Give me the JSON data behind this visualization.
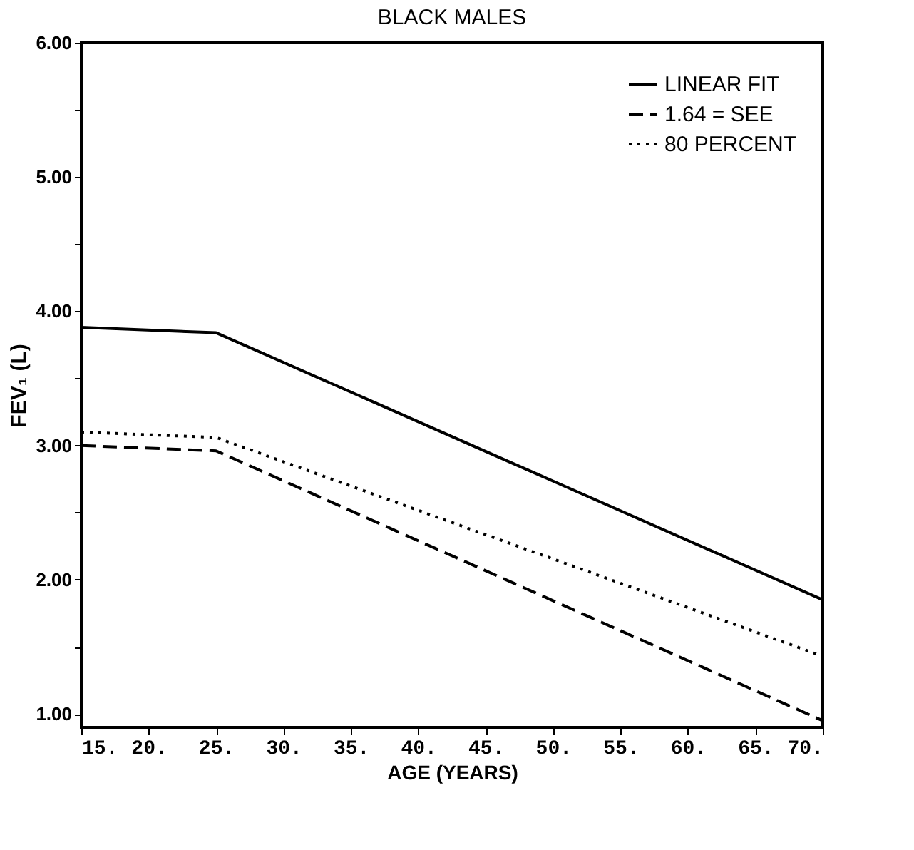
{
  "chart_data": {
    "type": "line",
    "title": "BLACK MALES",
    "xlabel": "AGE (YEARS)",
    "ylabel": "FEV₁ (L)",
    "x": [
      15,
      25,
      70
    ],
    "series": [
      {
        "name": "LINEAR FIT",
        "color": "#000000",
        "line_style": "solid",
        "values": [
          3.88,
          3.84,
          1.85
        ]
      },
      {
        "name": "1.64 = SEE",
        "color": "#000000",
        "line_style": "dashed",
        "values": [
          3.0,
          2.96,
          0.95
        ]
      },
      {
        "name": "80 PERCENT",
        "color": "#000000",
        "line_style": "dotted",
        "values": [
          3.1,
          3.06,
          1.43
        ]
      }
    ],
    "xlim": [
      15,
      70
    ],
    "ylim": [
      0.9,
      6.0
    ],
    "xticks": [
      {
        "value": 15,
        "label": "15."
      },
      {
        "value": 20,
        "label": "20."
      },
      {
        "value": 25,
        "label": "25."
      },
      {
        "value": 30,
        "label": "30."
      },
      {
        "value": 35,
        "label": "35."
      },
      {
        "value": 40,
        "label": "40."
      },
      {
        "value": 45,
        "label": "45."
      },
      {
        "value": 50,
        "label": "50."
      },
      {
        "value": 55,
        "label": "55."
      },
      {
        "value": 60,
        "label": "60."
      },
      {
        "value": 65,
        "label": "65."
      },
      {
        "value": 70,
        "label": "70."
      }
    ],
    "yticks": [
      {
        "value": 1,
        "label": "1.00"
      },
      {
        "value": 1.5,
        "label": null
      },
      {
        "value": 2,
        "label": "2.00"
      },
      {
        "value": 2.5,
        "label": null
      },
      {
        "value": 3,
        "label": "3.00"
      },
      {
        "value": 3.5,
        "label": null
      },
      {
        "value": 4,
        "label": "4.00"
      },
      {
        "value": 4.5,
        "label": null
      },
      {
        "value": 5,
        "label": "5.00"
      },
      {
        "value": 5.5,
        "label": null
      },
      {
        "value": 6,
        "label": "6.00"
      }
    ],
    "grid": false,
    "legend": "top right",
    "marker": "none"
  }
}
